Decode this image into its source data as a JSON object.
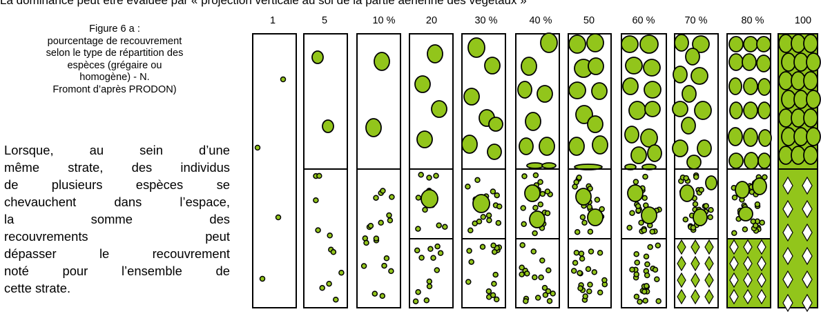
{
  "top_text": "La dominance peut être évaluée par « projection verticale au sol de la partie aérienne des végétaux »",
  "figure_caption": {
    "lines": [
      "Figure 6 a :",
      "pourcentage de recouvrement",
      "selon le type de répartition des",
      "espèces (grégaire ou",
      "homogène) - N.",
      "Fromont d’après PRODON)"
    ]
  },
  "body_paragraph": {
    "lines": [
      "Lorsque, au sein d’une",
      "même strate, des individus",
      "de plusieurs espèces se",
      "chevauchent dans l’espace,",
      "la somme des",
      "recouvrements peut",
      "dépasser le recouvrement",
      "noté pour l’ensemble de",
      "cette strate."
    ]
  },
  "colors": {
    "vegetation_green": "#92c51b",
    "outline": "#000000",
    "background": "#ffffff"
  },
  "diagram": {
    "percent_labels": [
      "1",
      "5",
      "10 %",
      "20",
      "30 %",
      "40 %",
      "50",
      "60 %",
      "70 %",
      "80 %",
      "100"
    ],
    "panel_sections": [
      "gregarious",
      "homogeneous",
      "mixed"
    ]
  }
}
